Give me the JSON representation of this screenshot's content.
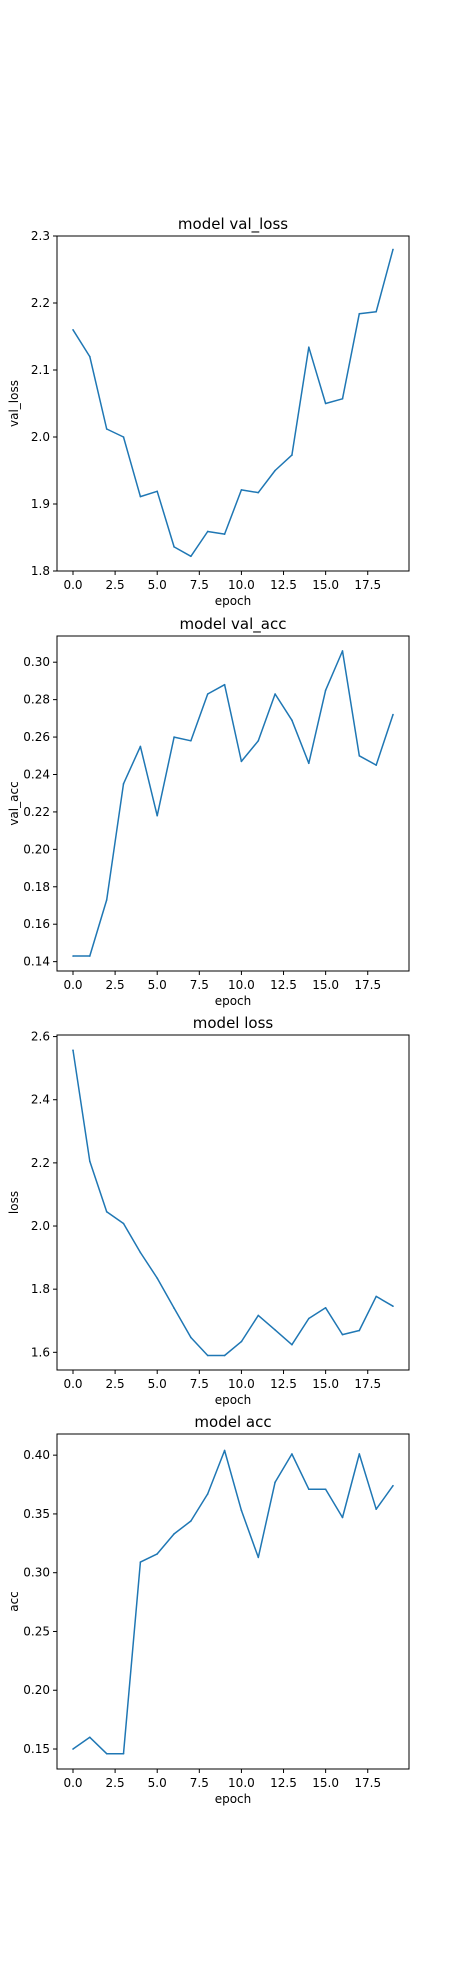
{
  "chart_data": [
    {
      "type": "line",
      "title": "model val_loss",
      "xlabel": "epoch",
      "ylabel": "val_loss",
      "xlim": [
        -0.95,
        19.95
      ],
      "ylim": [
        1.8,
        2.3
      ],
      "xticks": [
        0.0,
        2.5,
        5.0,
        7.5,
        10.0,
        12.5,
        15.0,
        17.5
      ],
      "xtick_labels": [
        "0.0",
        "2.5",
        "5.0",
        "7.5",
        "10.0",
        "12.5",
        "15.0",
        "17.5"
      ],
      "yticks": [
        1.8,
        1.9,
        2.0,
        2.1,
        2.2,
        2.3
      ],
      "ytick_labels": [
        "1.8",
        "1.9",
        "2.0",
        "2.1",
        "2.2",
        "2.3"
      ],
      "grid": false,
      "color": "#1f77b4",
      "series": [
        {
          "x": [
            0,
            1,
            2,
            3,
            4,
            5,
            6,
            7,
            8,
            9,
            10,
            11,
            12,
            13,
            14,
            15,
            16,
            17,
            18,
            19
          ],
          "values": [
            2.16,
            2.12,
            2.012,
            2.0,
            1.911,
            1.919,
            1.836,
            1.822,
            1.859,
            1.855,
            1.921,
            1.917,
            1.95,
            1.973,
            2.134,
            2.05,
            2.057,
            2.184,
            2.187,
            2.28
          ]
        }
      ]
    },
    {
      "type": "line",
      "title": "model val_acc",
      "xlabel": "epoch",
      "ylabel": "val_acc",
      "xlim": [
        -0.95,
        19.95
      ],
      "ylim": [
        0.135,
        0.314
      ],
      "xticks": [
        0.0,
        2.5,
        5.0,
        7.5,
        10.0,
        12.5,
        15.0,
        17.5
      ],
      "xtick_labels": [
        "0.0",
        "2.5",
        "5.0",
        "7.5",
        "10.0",
        "12.5",
        "15.0",
        "17.5"
      ],
      "yticks": [
        0.14,
        0.16,
        0.18,
        0.2,
        0.22,
        0.24,
        0.26,
        0.28,
        0.3
      ],
      "ytick_labels": [
        "0.14",
        "0.16",
        "0.18",
        "0.20",
        "0.22",
        "0.24",
        "0.26",
        "0.28",
        "0.30"
      ],
      "grid": false,
      "color": "#1f77b4",
      "series": [
        {
          "x": [
            0,
            1,
            2,
            3,
            4,
            5,
            6,
            7,
            8,
            9,
            10,
            11,
            12,
            13,
            14,
            15,
            16,
            17,
            18,
            19
          ],
          "values": [
            0.143,
            0.143,
            0.173,
            0.235,
            0.255,
            0.218,
            0.26,
            0.258,
            0.283,
            0.288,
            0.247,
            0.258,
            0.283,
            0.269,
            0.246,
            0.285,
            0.306,
            0.25,
            0.245,
            0.272
          ]
        }
      ]
    },
    {
      "type": "line",
      "title": "model loss",
      "xlabel": "epoch",
      "ylabel": "loss",
      "xlim": [
        -0.95,
        19.95
      ],
      "ylim": [
        1.544,
        2.605
      ],
      "xticks": [
        0.0,
        2.5,
        5.0,
        7.5,
        10.0,
        12.5,
        15.0,
        17.5
      ],
      "xtick_labels": [
        "0.0",
        "2.5",
        "5.0",
        "7.5",
        "10.0",
        "12.5",
        "15.0",
        "17.5"
      ],
      "yticks": [
        1.6,
        1.8,
        2.0,
        2.2,
        2.4,
        2.6
      ],
      "ytick_labels": [
        "1.6",
        "1.8",
        "2.0",
        "2.2",
        "2.4",
        "2.6"
      ],
      "grid": false,
      "color": "#1f77b4",
      "series": [
        {
          "x": [
            0,
            1,
            2,
            3,
            4,
            5,
            6,
            7,
            8,
            9,
            10,
            11,
            12,
            13,
            14,
            15,
            16,
            17,
            18,
            19
          ],
          "values": [
            2.557,
            2.205,
            2.045,
            2.008,
            1.916,
            1.835,
            1.74,
            1.647,
            1.59,
            1.59,
            1.634,
            1.717,
            1.671,
            1.624,
            1.707,
            1.741,
            1.656,
            1.669,
            1.777,
            1.746
          ]
        }
      ]
    },
    {
      "type": "line",
      "title": "model acc",
      "xlabel": "epoch",
      "ylabel": "acc",
      "xlim": [
        -0.95,
        19.95
      ],
      "ylim": [
        0.133,
        0.418
      ],
      "xticks": [
        0.0,
        2.5,
        5.0,
        7.5,
        10.0,
        12.5,
        15.0,
        17.5
      ],
      "xtick_labels": [
        "0.0",
        "2.5",
        "5.0",
        "7.5",
        "10.0",
        "12.5",
        "15.0",
        "17.5"
      ],
      "yticks": [
        0.15,
        0.2,
        0.25,
        0.3,
        0.35,
        0.4
      ],
      "ytick_labels": [
        "0.15",
        "0.20",
        "0.25",
        "0.30",
        "0.35",
        "0.40"
      ],
      "grid": false,
      "color": "#1f77b4",
      "series": [
        {
          "x": [
            0,
            1,
            2,
            3,
            4,
            5,
            6,
            7,
            8,
            9,
            10,
            11,
            12,
            13,
            14,
            15,
            16,
            17,
            18,
            19
          ],
          "values": [
            0.15,
            0.16,
            0.146,
            0.146,
            0.309,
            0.316,
            0.333,
            0.344,
            0.367,
            0.404,
            0.353,
            0.313,
            0.377,
            0.401,
            0.371,
            0.371,
            0.347,
            0.401,
            0.354,
            0.374
          ]
        }
      ]
    }
  ]
}
